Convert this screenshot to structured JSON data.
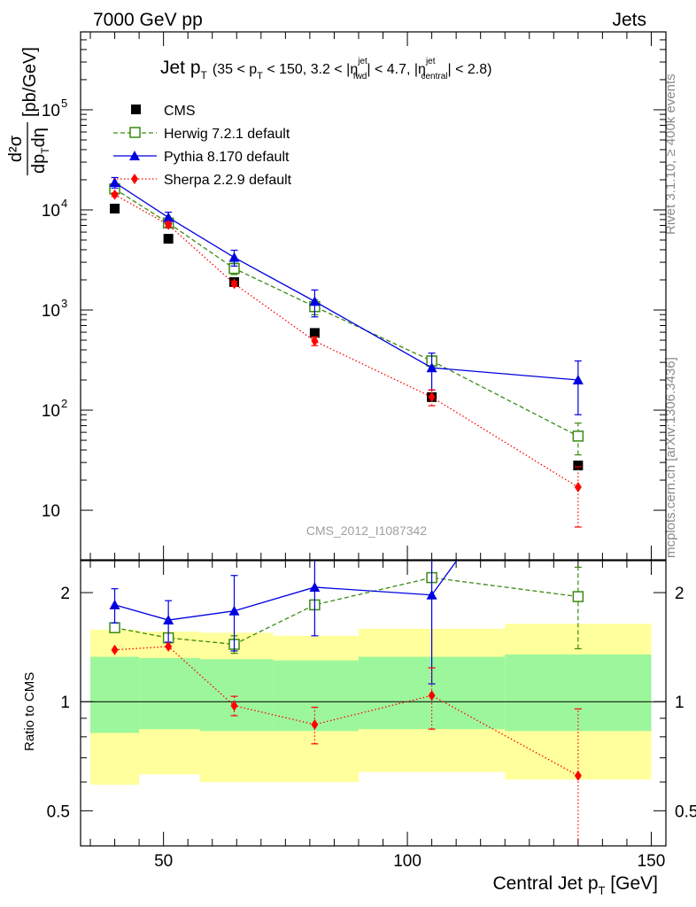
{
  "header": {
    "left": "7000 GeV pp",
    "right": "Jets"
  },
  "side_labels": {
    "top": "Rivet 3.1.10, ≥ 400k events",
    "bottom": "mcplots.cern.ch [arXiv:1306.3436]"
  },
  "watermark": "CMS_2012_I1087342",
  "chart_data": [
    {
      "type": "line",
      "title": {
        "main": "Jet p",
        "main_sub": "T",
        "cond_a": "(35 < p",
        "cond_a_sub": "T",
        "cond_b": " < 150, 3.2 < |η",
        "cond_b_sup": "jet",
        "cond_b_sub": "fwd",
        "cond_c": "| < 4.7, |η",
        "cond_c_sup": "jet",
        "cond_c_sub": "central",
        "cond_d": "| < 2.8)"
      },
      "ylabel": {
        "num": "d²σ",
        "den_a": "dp",
        "den_sub": "T",
        "den_b": "dη",
        "unit": "[pb/GeV]"
      },
      "xlabel": {
        "main": "Central Jet p",
        "sub": "T",
        "unit": " [GeV]"
      },
      "xlim": [
        33,
        153
      ],
      "ylim": [
        3.2,
        600000
      ],
      "yscale": "log",
      "ytick_labels": [
        "10",
        "10",
        "10",
        "10",
        "10"
      ],
      "ytick_exps": [
        "2",
        "3",
        "4",
        "5",
        ""
      ],
      "legend_position": "top-left",
      "x": [
        40,
        51,
        64.5,
        81,
        105,
        135
      ],
      "series": [
        {
          "name": "CMS",
          "color": "#000000",
          "marker": "square",
          "values": [
            10300,
            5150,
            1900,
            590,
            135,
            28
          ]
        },
        {
          "name": "Herwig 7.2.1 default",
          "color": "#3a8a12",
          "marker": "open-square",
          "line": "dashed",
          "values": [
            16200,
            7400,
            2600,
            1080,
            310,
            55
          ],
          "err_low": [
            0.12,
            0.1,
            0.13,
            0.17,
            0.12,
            0.35
          ],
          "err_high": [
            0.12,
            0.1,
            0.13,
            0.17,
            0.12,
            0.35
          ]
        },
        {
          "name": "Pythia 8.170 default",
          "color": "#0000e0",
          "marker": "triangle",
          "line": "solid",
          "values": [
            18800,
            8400,
            3350,
            1220,
            265,
            200
          ],
          "err_low": [
            0.12,
            0.13,
            0.18,
            0.3,
            0.4,
            0.55
          ],
          "err_high": [
            0.12,
            0.13,
            0.18,
            0.3,
            0.4,
            0.55
          ]
        },
        {
          "name": "Sherpa 2.2.9 default",
          "color": "#ff0000",
          "marker": "diamond",
          "line": "dotted",
          "values": [
            14200,
            7100,
            1830,
            490,
            135,
            17
          ],
          "err_low": [
            0.04,
            0.05,
            0.06,
            0.1,
            0.18,
            0.6
          ],
          "err_high": [
            0.04,
            0.05,
            0.06,
            0.1,
            0.18,
            0.6
          ]
        }
      ]
    },
    {
      "type": "line",
      "ylabel": "Ratio to CMS",
      "yscale": "log",
      "ylim": [
        0.4,
        2.45
      ],
      "ytick_labels": [
        "0.5",
        "1",
        "2"
      ],
      "ytick_values": [
        0.5,
        1,
        2
      ],
      "xtick_labels": [
        "50",
        "100",
        "150"
      ],
      "xtick_values": [
        50,
        100,
        150
      ],
      "bands": {
        "bin_edges": [
          35,
          45,
          57.5,
          72.5,
          90,
          120,
          150
        ],
        "inner_low": [
          0.82,
          0.84,
          0.83,
          0.83,
          0.84,
          0.83
        ],
        "inner_high": [
          1.33,
          1.32,
          1.31,
          1.3,
          1.33,
          1.35
        ],
        "outer_low": [
          0.59,
          0.63,
          0.6,
          0.6,
          0.64,
          0.61
        ],
        "outer_high": [
          1.58,
          1.56,
          1.55,
          1.52,
          1.59,
          1.64
        ],
        "inner_color": "#9cf79c",
        "outer_color": "#ffff9c"
      },
      "x": [
        40,
        51,
        64.5,
        81,
        105,
        135
      ],
      "series": [
        {
          "name": "Herwig 7.2.1 default",
          "color": "#3a8a12",
          "marker": "open-square",
          "line": "dashed",
          "values": [
            1.6,
            1.5,
            1.44,
            1.85,
            2.2,
            1.95
          ],
          "err_low": [
            0,
            0,
            0.08,
            0,
            0,
            0.55
          ],
          "err_high": [
            0,
            0,
            0.08,
            0,
            0,
            0.4
          ]
        },
        {
          "name": "Pythia 8.170 default",
          "color": "#0000e0",
          "marker": "triangle",
          "line": "solid",
          "values": [
            1.85,
            1.68,
            1.78,
            2.07,
            1.97,
            7.1
          ],
          "err_low": [
            0.2,
            0.22,
            0.4,
            0.55,
            0.85,
            0
          ],
          "err_high": [
            0.2,
            0.22,
            0.45,
            0.6,
            0.85,
            0
          ]
        },
        {
          "name": "Sherpa 2.2.9 default",
          "color": "#ff0000",
          "marker": "diamond",
          "line": "dotted",
          "values": [
            1.39,
            1.42,
            0.975,
            0.865,
            1.04,
            0.625
          ],
          "err_low": [
            0,
            0,
            0.06,
            0.1,
            0.2,
            0.3
          ],
          "err_high": [
            0,
            0,
            0.06,
            0.1,
            0.2,
            0.33
          ]
        }
      ]
    }
  ]
}
